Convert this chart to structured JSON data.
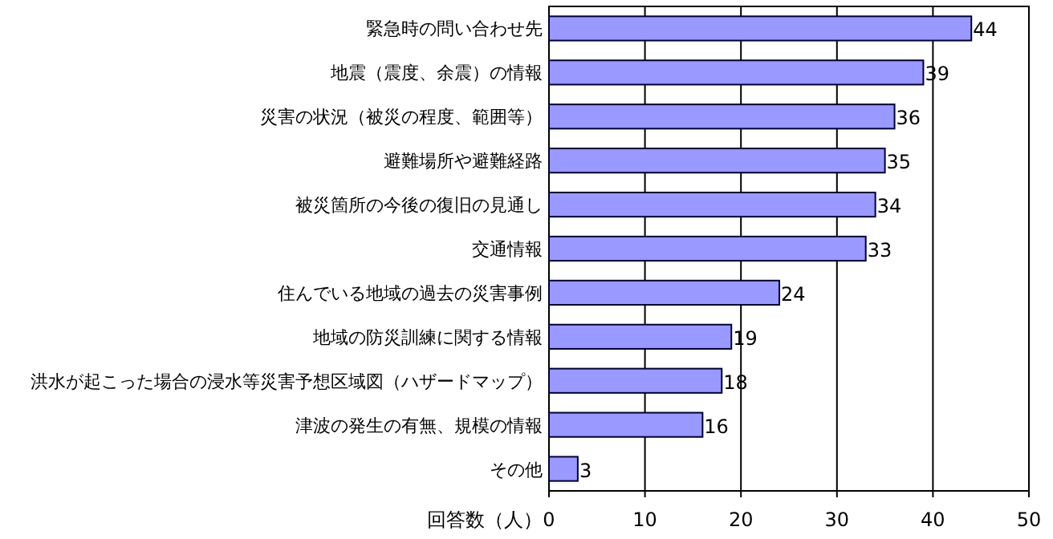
{
  "chart_data": {
    "type": "bar",
    "orientation": "horizontal",
    "xlabel": "回答数（人）",
    "categories": [
      "緊急時の問い合わせ先",
      "地震（震度、余震）の情報",
      "災害の状況（被災の程度、範囲等）",
      "避難場所や避難経路",
      "被災箇所の今後の復旧の見通し",
      "交通情報",
      "住んでいる地域の過去の災害事例",
      "地域の防災訓練に関する情報",
      "洪水が起こった場合の浸水等災害予想区域図（ハザードマップ）",
      "津波の発生の有無、規模の情報",
      "その他"
    ],
    "values": [
      44,
      39,
      36,
      35,
      34,
      33,
      24,
      19,
      18,
      16,
      3
    ],
    "color": "#9999ff",
    "xlim": [
      0,
      50
    ],
    "xticks": [
      0,
      10,
      20,
      30,
      40,
      50
    ],
    "grid": "x",
    "data_labels": true
  }
}
